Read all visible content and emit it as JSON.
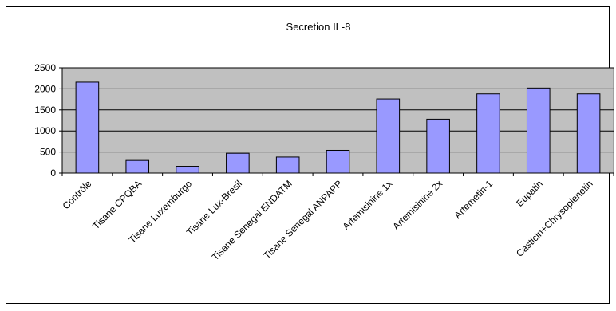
{
  "chart_data": {
    "type": "bar",
    "title": "Secretion IL-8",
    "xlabel": "",
    "ylabel": "",
    "categories": [
      "Contrôle",
      "Tisane CPQBA",
      "Tisane Luxemburgo",
      "Tisane Lux-Bresil",
      "Tisane Senegal ENDATM",
      "Tisane Senegal ANPAPP",
      "Artemisinine 1x",
      "Artemisinine 2x",
      "Artemetin-1",
      "Eupatin",
      "Casticin+Chrysoplenetin"
    ],
    "values": [
      2160,
      300,
      160,
      470,
      380,
      540,
      1760,
      1280,
      1880,
      2020,
      1880
    ],
    "ylim": [
      0,
      2500
    ],
    "yticks": [
      0,
      500,
      1000,
      1500,
      2000,
      2500
    ],
    "ytick_labels": [
      "0",
      "500",
      "1000",
      "1500",
      "2000",
      "2500"
    ],
    "grid": true,
    "legend": "none",
    "plot_background": "#c0c0c0",
    "bar_color": "#9999ff",
    "bar_edge": "#000000"
  }
}
